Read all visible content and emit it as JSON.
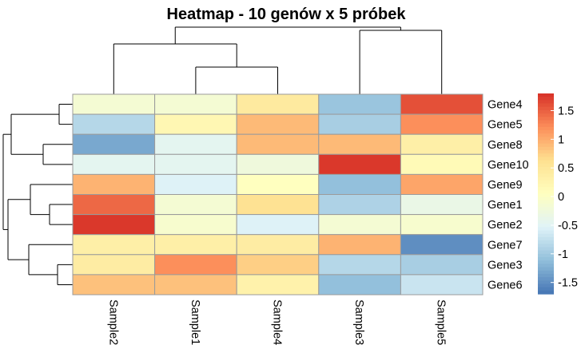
{
  "chart_data": {
    "type": "heatmap",
    "title": "Heatmap - 10 genów x 5 próbek",
    "columns": [
      "Sample2",
      "Sample1",
      "Sample4",
      "Sample3",
      "Sample5"
    ],
    "rows": [
      "Gene4",
      "Gene5",
      "Gene8",
      "Gene10",
      "Gene9",
      "Gene1",
      "Gene2",
      "Gene7",
      "Gene3",
      "Gene6"
    ],
    "values": [
      [
        -0.15,
        -0.15,
        0.45,
        -1.05,
        1.6
      ],
      [
        -0.85,
        0.2,
        0.9,
        -0.95,
        1.2
      ],
      [
        -1.3,
        -0.45,
        0.9,
        0.9,
        0.35
      ],
      [
        -0.45,
        -0.45,
        -0.25,
        1.75,
        0.15
      ],
      [
        0.95,
        -0.55,
        0.05,
        -1.1,
        1.05
      ],
      [
        1.45,
        -0.15,
        0.6,
        -0.9,
        -0.35
      ],
      [
        1.75,
        -0.1,
        -0.55,
        -0.15,
        -0.1
      ],
      [
        0.35,
        0.35,
        0.4,
        0.95,
        -1.5
      ],
      [
        0.4,
        1.2,
        0.75,
        -0.85,
        -0.95
      ],
      [
        0.85,
        0.85,
        0.3,
        -1.1,
        -0.7
      ]
    ],
    "colorbar": {
      "ticks": [
        1.5,
        1,
        0.5,
        0,
        -0.5,
        -1,
        -1.5
      ],
      "tick_labels": [
        "1.5",
        "1",
        "0.5",
        "0",
        "-0.5",
        "-1",
        "-1.5"
      ],
      "range": [
        -1.7,
        1.8
      ],
      "palette": [
        "#4575b4",
        "#91bfdb",
        "#e0f3f8",
        "#ffffbf",
        "#fee090",
        "#fc8d59",
        "#d73027"
      ]
    },
    "grid": true,
    "legend": "right",
    "row_dendrogram": true,
    "column_dendrogram": true
  }
}
